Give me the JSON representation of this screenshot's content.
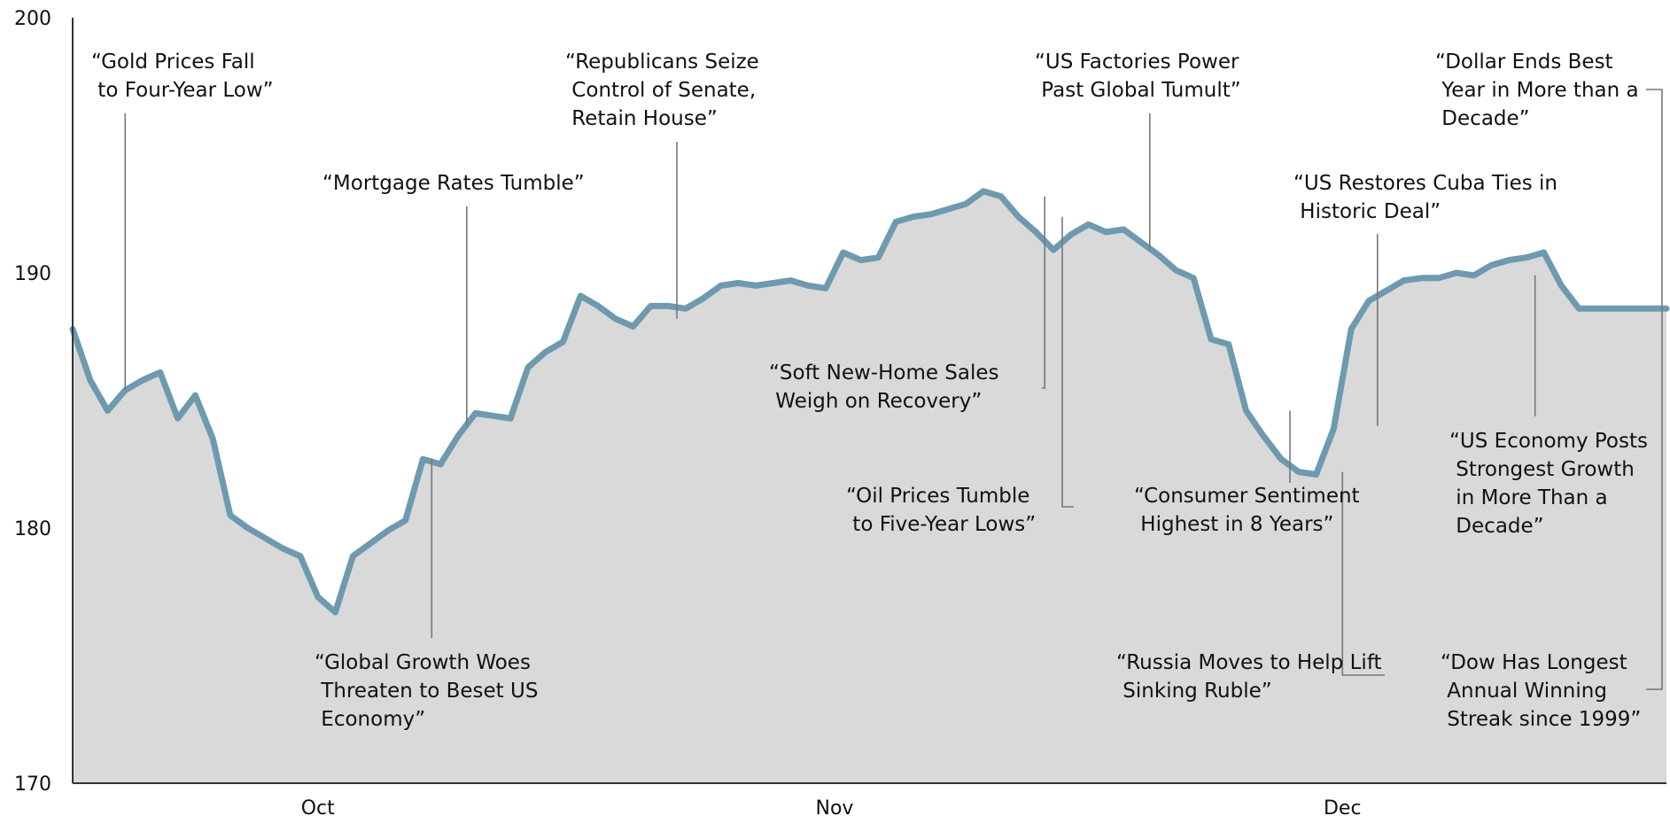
{
  "chart_data": {
    "type": "area",
    "title": "",
    "xlabel": "",
    "ylabel": "",
    "ylim": [
      170,
      200
    ],
    "y_ticks": [
      170,
      180,
      190,
      200
    ],
    "x_tick_labels": [
      {
        "label": "Oct",
        "x": 14
      },
      {
        "label": "Nov",
        "x": 43.5
      },
      {
        "label": "Dec",
        "x": 72.5
      }
    ],
    "grid": false,
    "legend": "none",
    "colors": {
      "line": "#6e9aaf",
      "fill": "#d9d9d9",
      "axis": "#333333",
      "leader": "#777777"
    },
    "series": [
      {
        "x": [
          0,
          1,
          2,
          3,
          4,
          5,
          6,
          7,
          8,
          9,
          10,
          11,
          12,
          13,
          14,
          15,
          16,
          17,
          18,
          19,
          20,
          21,
          22,
          23,
          24,
          25,
          26,
          27,
          28,
          29,
          30,
          31,
          32,
          33,
          34,
          35,
          36,
          37,
          38,
          39,
          40,
          41,
          42,
          43,
          44,
          45,
          46,
          47,
          48,
          49,
          50,
          51,
          52,
          53,
          54,
          55,
          56,
          57,
          58,
          59,
          60,
          61,
          62,
          63,
          64,
          65,
          66,
          67,
          68,
          69,
          70,
          71,
          72,
          73,
          74,
          75,
          76,
          77,
          78,
          79,
          80,
          81,
          82,
          83,
          84,
          85,
          86,
          87,
          88,
          89,
          90,
          91
        ],
        "values": [
          187.8,
          185.8,
          184.6,
          185.4,
          185.8,
          186.1,
          184.3,
          185.2,
          183.5,
          180.5,
          180.0,
          179.6,
          179.2,
          178.9,
          177.3,
          176.7,
          178.9,
          179.4,
          179.9,
          180.3,
          182.7,
          182.5,
          183.6,
          184.5,
          184.4,
          184.3,
          186.3,
          186.9,
          187.3,
          189.1,
          188.7,
          188.2,
          187.9,
          188.7,
          188.7,
          188.6,
          189.0,
          189.5,
          189.6,
          189.5,
          189.6,
          189.7,
          189.5,
          189.4,
          190.8,
          190.5,
          190.6,
          192.0,
          192.2,
          192.3,
          192.5,
          192.7,
          193.2,
          193.0,
          192.2,
          191.6,
          190.9,
          191.5,
          191.9,
          191.6,
          191.7,
          191.2,
          190.7,
          190.1,
          189.8,
          187.4,
          187.2,
          184.6,
          183.6,
          182.7,
          182.2,
          182.1,
          183.9,
          187.8,
          188.9,
          189.3,
          189.7,
          189.8,
          189.8,
          190.0,
          189.9,
          190.3,
          190.5,
          190.6,
          190.8,
          189.5,
          188.6,
          188.6,
          188.6,
          188.6,
          188.6,
          188.6
        ]
      }
    ],
    "annotations": [
      {
        "lines": [
          "“Gold Prices Fall",
          " to Four-Year Low”"
        ],
        "x": 3,
        "y": 185.4
      },
      {
        "lines": [
          "“Mortgage Rates Tumble”"
        ],
        "x": 22.5,
        "y": 184.0
      },
      {
        "lines": [
          "“Global Growth Woes",
          " Threaten to Beset US",
          " Economy”"
        ],
        "x": 20.5,
        "y": 182.7
      },
      {
        "lines": [
          "“Republicans Seize",
          " Control of Senate,",
          " Retain House”"
        ],
        "x": 34.5,
        "y": 188.2
      },
      {
        "lines": [
          "“Soft New-Home Sales",
          " Weigh on Recovery”"
        ],
        "x": 55.5,
        "y": 193.0
      },
      {
        "lines": [
          "“Oil Prices Tumble",
          " to Five-Year Lows”"
        ],
        "x": 56.5,
        "y": 192.2
      },
      {
        "lines": [
          "“US Factories Power",
          " Past Global Tumult”"
        ],
        "x": 61.5,
        "y": 190.9
      },
      {
        "lines": [
          "“Consumer Sentiment",
          " Highest in 8 Years”"
        ],
        "x": 69.5,
        "y": 184.6
      },
      {
        "lines": [
          "“US Restores Cuba Ties in",
          " Historic Deal”"
        ],
        "x": 74.5,
        "y": 184.0
      },
      {
        "lines": [
          "“Russia Moves to Help Lift",
          " Sinking Ruble”"
        ],
        "x": 72.5,
        "y": 182.2
      },
      {
        "lines": [
          "“US Economy Posts",
          " Strongest Growth",
          " in More Than a",
          " Decade”"
        ],
        "x": 83.5,
        "y": 189.9
      },
      {
        "lines": [
          "“Dollar Ends Best",
          " Year in More than a",
          " Decade”"
        ],
        "x": 91.0,
        "y": 188.6
      },
      {
        "lines": [
          "“Dow Has Longest",
          " Annual Winning",
          " Streak since 1999”"
        ],
        "x": 91.0,
        "y": 188.6
      }
    ]
  }
}
